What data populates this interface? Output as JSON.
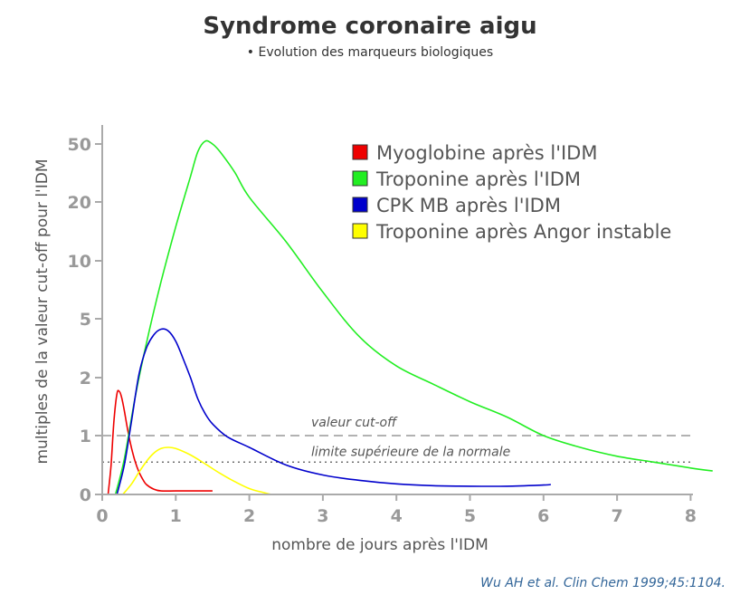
{
  "title": "Syndrome coronaire aigu",
  "subtitle": "• Evolution des marqueurs biologiques",
  "citation": "Wu AH et al. Clin Chem 1999;45:1104.",
  "chart_data": {
    "type": "line",
    "xlabel": "nombre de jours après l'IDM",
    "ylabel": "multiples de la valeur cut-off pour l'IDM",
    "xlim": [
      0,
      8
    ],
    "x_ticks": [
      "0",
      "1",
      "2",
      "3",
      "4",
      "5",
      "6",
      "7",
      "8"
    ],
    "y_scale": "log",
    "y_ticks": [
      "0",
      "1",
      "2",
      "5",
      "10",
      "20",
      "50"
    ],
    "legend_position": "top-right",
    "series": [
      {
        "name": "Myoglobine après l'IDM",
        "color": "#ee0000",
        "x": [
          0.08,
          0.12,
          0.16,
          0.2,
          0.23,
          0.26,
          0.3,
          0.35,
          0.4,
          0.45,
          0.5,
          0.55,
          0.6,
          0.7,
          0.8,
          1.0,
          1.3,
          1.5
        ],
        "y": [
          0,
          0.5,
          1.2,
          1.65,
          1.7,
          1.6,
          1.35,
          1.05,
          0.78,
          0.55,
          0.38,
          0.26,
          0.17,
          0.09,
          0.06,
          0.06,
          0.06,
          0.06
        ]
      },
      {
        "name": "Troponine après l'IDM",
        "color": "#22ee22",
        "x": [
          0.18,
          0.3,
          0.45,
          0.6,
          0.8,
          1.0,
          1.2,
          1.3,
          1.4,
          1.5,
          1.6,
          1.8,
          2.0,
          2.5,
          3.0,
          3.5,
          4.0,
          4.5,
          5.0,
          5.5,
          6.0,
          6.5,
          7.0,
          7.5,
          8.0,
          8.3
        ],
        "y": [
          0,
          0.6,
          1.6,
          3.2,
          7.5,
          16,
          32,
          45,
          52,
          50,
          45,
          34,
          24,
          13,
          6.5,
          3.5,
          2.35,
          1.85,
          1.5,
          1.25,
          1.0,
          0.8,
          0.65,
          0.55,
          0.45,
          0.4
        ]
      },
      {
        "name": "CPK MB après l'IDM",
        "color": "#0000cc",
        "x": [
          0.2,
          0.3,
          0.4,
          0.5,
          0.6,
          0.7,
          0.8,
          0.9,
          1.0,
          1.1,
          1.2,
          1.3,
          1.4,
          1.5,
          1.7,
          2.0,
          2.5,
          3.0,
          3.5,
          4.0,
          4.5,
          5.0,
          5.5,
          6.0,
          6.1
        ],
        "y": [
          0,
          0.5,
          1.2,
          2.1,
          3.0,
          3.6,
          3.9,
          3.8,
          3.3,
          2.6,
          2.0,
          1.55,
          1.3,
          1.15,
          0.98,
          0.8,
          0.5,
          0.33,
          0.24,
          0.18,
          0.15,
          0.14,
          0.14,
          0.16,
          0.17
        ]
      },
      {
        "name": "Troponine après Angor instable",
        "color": "#ffff00",
        "x": [
          0.28,
          0.4,
          0.5,
          0.6,
          0.7,
          0.8,
          0.9,
          1.0,
          1.2,
          1.4,
          1.6,
          1.8,
          2.0,
          2.2,
          2.3
        ],
        "y": [
          0,
          0.18,
          0.38,
          0.56,
          0.7,
          0.78,
          0.8,
          0.78,
          0.67,
          0.52,
          0.36,
          0.22,
          0.1,
          0.03,
          0.0
        ]
      }
    ],
    "reference_lines": [
      {
        "label": "valeur cut-off",
        "y": 1,
        "style": "dashed"
      },
      {
        "label": "limite supérieure de la normale",
        "y": 0.55,
        "style": "dotted"
      }
    ]
  }
}
